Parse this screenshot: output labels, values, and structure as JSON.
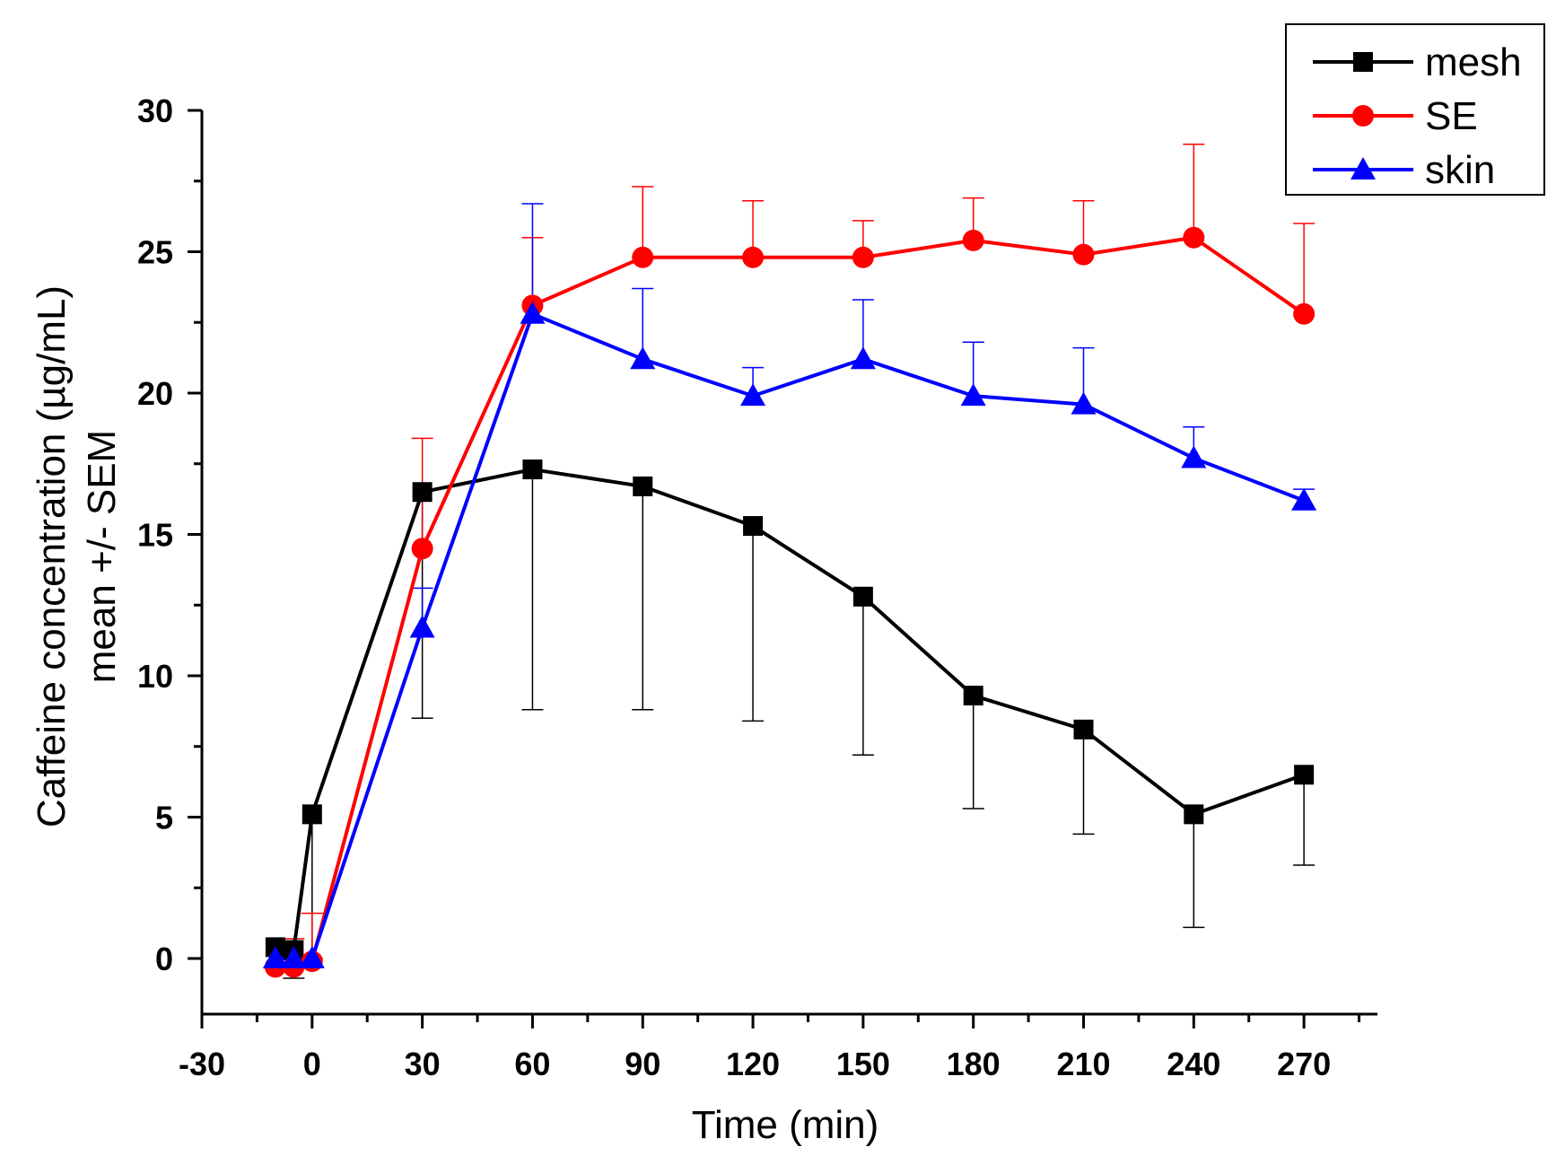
{
  "chart_data": {
    "type": "line",
    "title": "",
    "xlabel": "Time (min)",
    "ylabel_lines": [
      "Caffeine concentration (µg/mL)",
      "mean +/- SEM"
    ],
    "xlim": [
      -30,
      290
    ],
    "ylim": [
      -2,
      30
    ],
    "x_ticks": [
      -30,
      0,
      30,
      60,
      90,
      120,
      150,
      180,
      210,
      240,
      270
    ],
    "x_tick_labels": [
      "-30",
      "0",
      "30",
      "60",
      "90",
      "120",
      "150",
      "180",
      "210",
      "240",
      "270"
    ],
    "y_ticks": [
      0,
      5,
      10,
      15,
      20,
      25,
      30
    ],
    "y_tick_labels": [
      "0",
      "5",
      "10",
      "15",
      "20",
      "25",
      "30"
    ],
    "grid": false,
    "legend_position": "top-right",
    "series": [
      {
        "name": "mesh",
        "color": "#000000",
        "marker": "square",
        "x": [
          -10,
          -5,
          0,
          30,
          60,
          90,
          120,
          150,
          180,
          210,
          240,
          270
        ],
        "values": [
          0.4,
          0.3,
          5.1,
          16.5,
          17.3,
          16.7,
          15.3,
          12.8,
          9.3,
          8.1,
          5.1,
          6.5
        ],
        "error_plus": [
          0,
          0,
          0,
          0,
          0,
          0,
          0,
          0,
          0,
          0,
          0,
          0
        ],
        "error_minus": [
          0,
          1.0,
          5.1,
          8.0,
          8.5,
          7.9,
          6.9,
          5.6,
          4.0,
          3.7,
          4.0,
          3.2
        ]
      },
      {
        "name": "SE",
        "color": "#ff0000",
        "marker": "circle",
        "x": [
          -10,
          -5,
          0,
          30,
          60,
          90,
          120,
          150,
          180,
          210,
          240,
          270
        ],
        "values": [
          -0.3,
          -0.3,
          -0.1,
          14.5,
          23.1,
          24.8,
          24.8,
          24.8,
          25.4,
          24.9,
          25.5,
          22.8
        ],
        "error_plus": [
          0,
          1.0,
          1.7,
          3.9,
          2.4,
          2.5,
          2.0,
          1.3,
          1.5,
          1.9,
          3.3,
          3.2
        ],
        "error_minus": [
          0,
          0,
          0,
          0,
          0,
          0,
          0,
          0,
          0,
          0,
          0,
          0
        ]
      },
      {
        "name": "skin",
        "color": "#0000ff",
        "marker": "triangle",
        "x": [
          -10,
          -5,
          0,
          30,
          60,
          90,
          120,
          150,
          180,
          210,
          240,
          270
        ],
        "values": [
          0.0,
          0.0,
          0.0,
          11.7,
          22.8,
          21.2,
          19.9,
          21.2,
          19.9,
          19.6,
          17.7,
          16.2
        ],
        "error_plus": [
          0,
          0,
          0,
          1.4,
          3.9,
          2.5,
          1.0,
          2.1,
          1.9,
          2.0,
          1.1,
          0.4
        ],
        "error_minus": [
          0,
          0,
          0,
          0,
          0,
          0,
          0,
          0,
          0,
          0,
          0,
          0
        ]
      }
    ]
  }
}
